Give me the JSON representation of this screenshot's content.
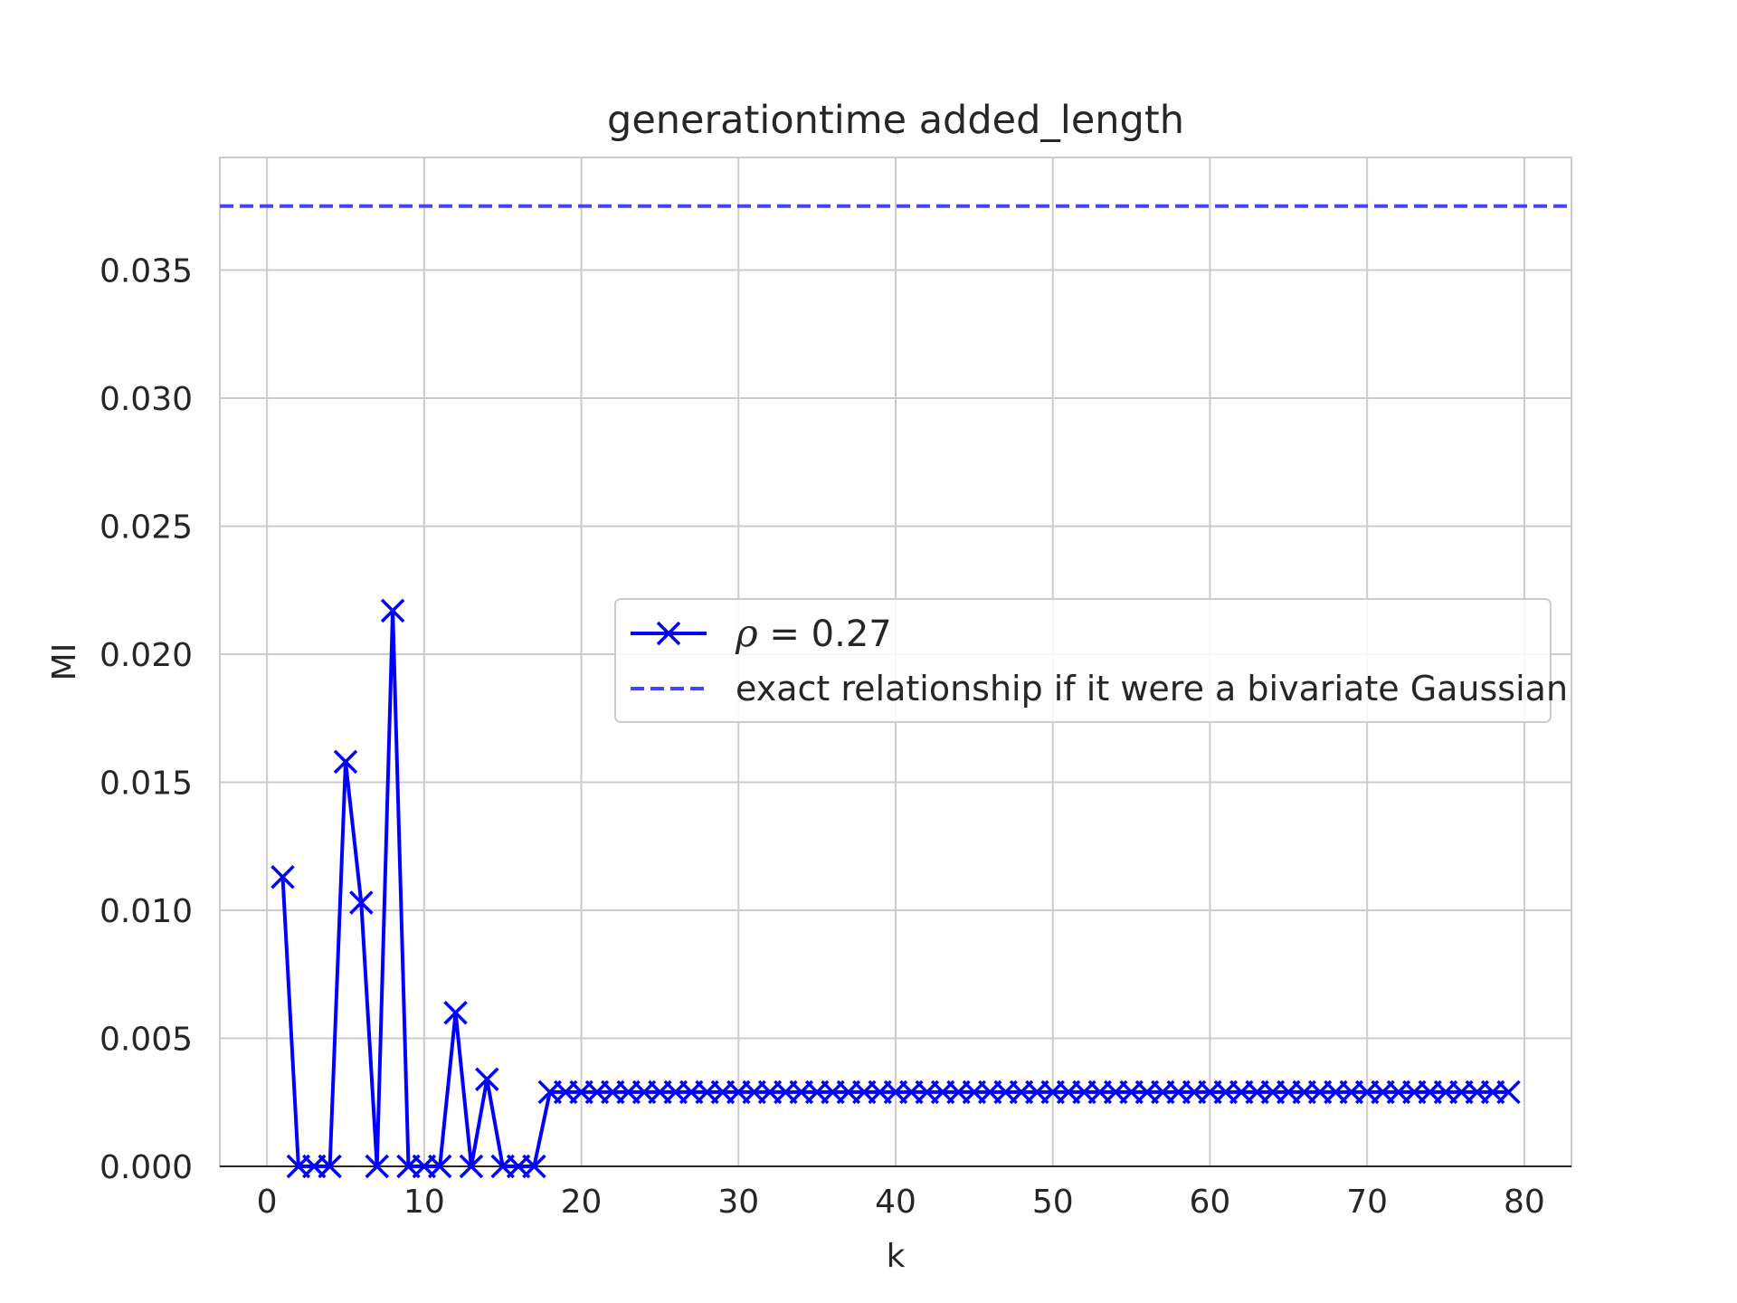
{
  "chart_data": {
    "type": "line",
    "title": "generationtime added_length",
    "xlabel": "k",
    "ylabel": "MI",
    "xlim": [
      -3,
      83
    ],
    "ylim": [
      0,
      0.0394
    ],
    "x_ticks": [
      0,
      10,
      20,
      30,
      40,
      50,
      60,
      70,
      80
    ],
    "x_tick_labels": [
      "0",
      "10",
      "20",
      "30",
      "40",
      "50",
      "60",
      "70",
      "80"
    ],
    "y_ticks": [
      0,
      0.005,
      0.01,
      0.015,
      0.02,
      0.025,
      0.03,
      0.035
    ],
    "y_tick_labels": [
      "0.000",
      "0.005",
      "0.010",
      "0.015",
      "0.020",
      "0.025",
      "0.030",
      "0.035"
    ],
    "grid": true,
    "legend_position": "center-right",
    "colors": {
      "series": "#0000ff",
      "reference": "#4444ff",
      "grid": "#cccccc",
      "text": "#262626"
    },
    "series": [
      {
        "name": "ρ = 0.27",
        "name_symbol": "ρ",
        "name_rest": " = 0.27",
        "style": "solid",
        "marker": "x",
        "x": [
          1,
          2,
          3,
          4,
          5,
          6,
          7,
          8,
          9,
          10,
          11,
          12,
          13,
          14,
          15,
          16,
          17,
          18,
          19,
          20,
          21,
          22,
          23,
          24,
          25,
          26,
          27,
          28,
          29,
          30,
          31,
          32,
          33,
          34,
          35,
          36,
          37,
          38,
          39,
          40,
          41,
          42,
          43,
          44,
          45,
          46,
          47,
          48,
          49,
          50,
          51,
          52,
          53,
          54,
          55,
          56,
          57,
          58,
          59,
          60,
          61,
          62,
          63,
          64,
          65,
          66,
          67,
          68,
          69,
          70,
          71,
          72,
          73,
          74,
          75,
          76,
          77,
          78,
          79
        ],
        "values": [
          0.0113,
          0.0,
          0.0,
          0.0,
          0.0158,
          0.0103,
          0.0,
          0.0217,
          0.0,
          0.0,
          0.0,
          0.006,
          0.0,
          0.0034,
          0.0,
          0.0,
          0.0,
          0.0029,
          0.0029,
          0.0029,
          0.0029,
          0.0029,
          0.0029,
          0.0029,
          0.0029,
          0.0029,
          0.0029,
          0.0029,
          0.0029,
          0.0029,
          0.0029,
          0.0029,
          0.0029,
          0.0029,
          0.0029,
          0.0029,
          0.0029,
          0.0029,
          0.0029,
          0.0029,
          0.0029,
          0.0029,
          0.0029,
          0.0029,
          0.0029,
          0.0029,
          0.0029,
          0.0029,
          0.0029,
          0.0029,
          0.0029,
          0.0029,
          0.0029,
          0.0029,
          0.0029,
          0.0029,
          0.0029,
          0.0029,
          0.0029,
          0.0029,
          0.0029,
          0.0029,
          0.0029,
          0.0029,
          0.0029,
          0.0029,
          0.0029,
          0.0029,
          0.0029,
          0.0029,
          0.0029,
          0.0029,
          0.0029,
          0.0029,
          0.0029,
          0.0029,
          0.0029,
          0.0029,
          0.0029
        ]
      },
      {
        "name": "exact relationship if it were a bivariate Gaussian",
        "style": "dashed",
        "y_constant": 0.0375
      }
    ]
  }
}
